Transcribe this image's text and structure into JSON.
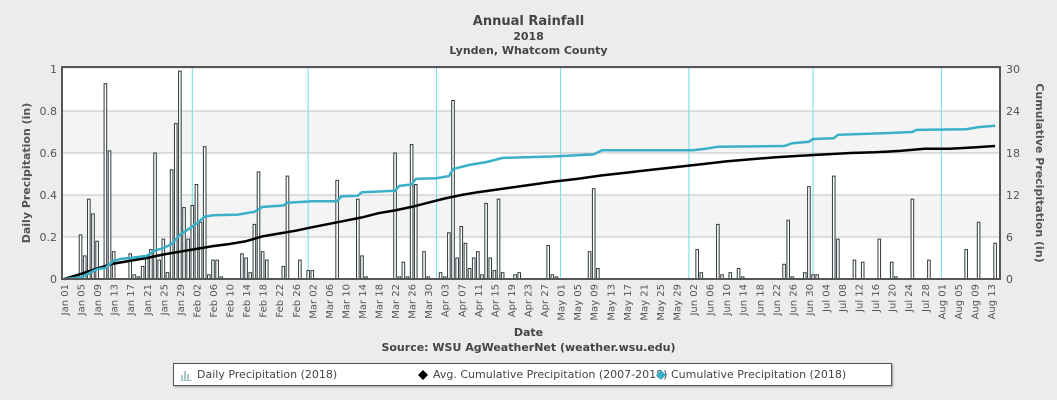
{
  "header": {
    "title": "Annual Rainfall",
    "year": "2018",
    "location": "Lynden, Whatcom County"
  },
  "source": "Source:  WSU AgWeatherNet (weather.wsu.edu)",
  "legend": {
    "items": [
      {
        "label": "Daily Precipitation (2018)",
        "icon": "bar-chart-icon",
        "color": "#a8c8cc"
      },
      {
        "label": "Avg. Cumulative Precipitation (2007-2018)",
        "icon": "diamond-icon",
        "color": "#000000"
      },
      {
        "label": "Cumulative Precipitation (2018)",
        "icon": "diamond-icon",
        "color": "#3ab0c8"
      }
    ]
  },
  "chart_data": {
    "type": "bar",
    "title": "Annual Rainfall",
    "subtitle": [
      "2018",
      "Lynden, Whatcom County"
    ],
    "xlabel": "Date",
    "ylabel": "Daily Precipitation (in)",
    "y2label": "Cumulative Precipitation (in)",
    "ylim": [
      0,
      1
    ],
    "y2lim": [
      0,
      30
    ],
    "yticks": [
      "0",
      "0.2",
      "0.4",
      "0.6",
      "0.8",
      "1"
    ],
    "y2ticks": [
      "0",
      "6",
      "12",
      "18",
      "24",
      "30"
    ],
    "xticks": [
      "Jan 01",
      "Jan 05",
      "Jan 09",
      "Jan 13",
      "Jan 17",
      "Jan 21",
      "Jan 25",
      "Jan 29",
      "Feb 02",
      "Feb 06",
      "Feb 10",
      "Feb 14",
      "Feb 18",
      "Feb 22",
      "Feb 26",
      "Mar 02",
      "Mar 06",
      "Mar 10",
      "Mar 14",
      "Mar 18",
      "Mar 22",
      "Mar 26",
      "Mar 30",
      "Apr 03",
      "Apr 07",
      "Apr 11",
      "Apr 15",
      "Apr 19",
      "Apr 23",
      "Apr 27",
      "May 01",
      "May 05",
      "May 09",
      "May 13",
      "May 17",
      "May 21",
      "May 25",
      "May 29",
      "Jun 02",
      "Jun 06",
      "Jun 10",
      "Jun 14",
      "Jun 18",
      "Jun 22",
      "Jun 26",
      "Jun 30",
      "Jul 04",
      "Jul 08",
      "Jul 12",
      "Jul 16",
      "Jul 20",
      "Jul 24",
      "Jul 28",
      "Aug 01",
      "Aug 05",
      "Aug 09",
      "Aug 13"
    ],
    "month_start_days": [
      31,
      59,
      90,
      120,
      151,
      181,
      212
    ],
    "num_days": 226,
    "grid": true,
    "legend_position": "bottom",
    "series": [
      {
        "name": "Daily Precipitation (2018)",
        "type": "bar",
        "axis": "left",
        "points": [
          [
            4,
            0.21
          ],
          [
            5,
            0.11
          ],
          [
            6,
            0.38
          ],
          [
            7,
            0.31
          ],
          [
            8,
            0.18
          ],
          [
            10,
            0.93
          ],
          [
            11,
            0.61
          ],
          [
            12,
            0.13
          ],
          [
            16,
            0.12
          ],
          [
            17,
            0.02
          ],
          [
            18,
            0.01
          ],
          [
            19,
            0.06
          ],
          [
            20,
            0.1
          ],
          [
            21,
            0.14
          ],
          [
            22,
            0.6
          ],
          [
            23,
            0.09
          ],
          [
            24,
            0.19
          ],
          [
            25,
            0.03
          ],
          [
            26,
            0.52
          ],
          [
            27,
            0.74
          ],
          [
            28,
            0.99
          ],
          [
            29,
            0.34
          ],
          [
            30,
            0.19
          ],
          [
            31,
            0.35
          ],
          [
            32,
            0.45
          ],
          [
            33,
            0.27
          ],
          [
            34,
            0.63
          ],
          [
            35,
            0.02
          ],
          [
            36,
            0.09
          ],
          [
            37,
            0.09
          ],
          [
            38,
            0.01
          ],
          [
            43,
            0.12
          ],
          [
            44,
            0.1
          ],
          [
            45,
            0.03
          ],
          [
            46,
            0.26
          ],
          [
            47,
            0.51
          ],
          [
            48,
            0.13
          ],
          [
            49,
            0.09
          ],
          [
            53,
            0.06
          ],
          [
            54,
            0.49
          ],
          [
            57,
            0.09
          ],
          [
            59,
            0.04
          ],
          [
            60,
            0.04
          ],
          [
            66,
            0.47
          ],
          [
            71,
            0.38
          ],
          [
            72,
            0.11
          ],
          [
            73,
            0.01
          ],
          [
            80,
            0.6
          ],
          [
            81,
            0.01
          ],
          [
            82,
            0.08
          ],
          [
            83,
            0.01
          ],
          [
            84,
            0.64
          ],
          [
            85,
            0.45
          ],
          [
            87,
            0.13
          ],
          [
            88,
            0.01
          ],
          [
            91,
            0.03
          ],
          [
            92,
            0.01
          ],
          [
            93,
            0.22
          ],
          [
            94,
            0.85
          ],
          [
            95,
            0.1
          ],
          [
            96,
            0.25
          ],
          [
            97,
            0.17
          ],
          [
            98,
            0.05
          ],
          [
            99,
            0.1
          ],
          [
            100,
            0.13
          ],
          [
            101,
            0.02
          ],
          [
            102,
            0.36
          ],
          [
            103,
            0.1
          ],
          [
            104,
            0.04
          ],
          [
            105,
            0.38
          ],
          [
            106,
            0.03
          ],
          [
            109,
            0.02
          ],
          [
            110,
            0.03
          ],
          [
            117,
            0.16
          ],
          [
            118,
            0.02
          ],
          [
            119,
            0.01
          ],
          [
            127,
            0.13
          ],
          [
            128,
            0.43
          ],
          [
            129,
            0.05
          ],
          [
            153,
            0.14
          ],
          [
            154,
            0.03
          ],
          [
            158,
            0.26
          ],
          [
            159,
            0.02
          ],
          [
            161,
            0.03
          ],
          [
            163,
            0.05
          ],
          [
            164,
            0.01
          ],
          [
            174,
            0.07
          ],
          [
            175,
            0.28
          ],
          [
            176,
            0.01
          ],
          [
            179,
            0.03
          ],
          [
            180,
            0.44
          ],
          [
            181,
            0.02
          ],
          [
            182,
            0.02
          ],
          [
            186,
            0.49
          ],
          [
            187,
            0.19
          ],
          [
            191,
            0.09
          ],
          [
            193,
            0.08
          ],
          [
            197,
            0.19
          ],
          [
            200,
            0.08
          ],
          [
            201,
            0.01
          ],
          [
            205,
            0.38
          ],
          [
            209,
            0.09
          ],
          [
            218,
            0.14
          ],
          [
            221,
            0.27
          ],
          [
            225,
            0.17
          ]
        ]
      },
      {
        "name": "Avg. Cumulative Precipitation (2007-2018)",
        "type": "line",
        "axis": "right",
        "color": "#000000",
        "points": [
          [
            0,
            0.0
          ],
          [
            4,
            0.7
          ],
          [
            8,
            1.5
          ],
          [
            12,
            2.2
          ],
          [
            16,
            2.6
          ],
          [
            20,
            3.0
          ],
          [
            24,
            3.5
          ],
          [
            28,
            3.9
          ],
          [
            32,
            4.3
          ],
          [
            36,
            4.7
          ],
          [
            40,
            5.0
          ],
          [
            44,
            5.4
          ],
          [
            48,
            6.1
          ],
          [
            52,
            6.5
          ],
          [
            56,
            6.9
          ],
          [
            60,
            7.4
          ],
          [
            66,
            8.1
          ],
          [
            72,
            8.8
          ],
          [
            76,
            9.4
          ],
          [
            80,
            9.8
          ],
          [
            84,
            10.3
          ],
          [
            88,
            10.9
          ],
          [
            92,
            11.5
          ],
          [
            96,
            12.0
          ],
          [
            100,
            12.4
          ],
          [
            106,
            12.9
          ],
          [
            112,
            13.4
          ],
          [
            118,
            13.9
          ],
          [
            124,
            14.3
          ],
          [
            130,
            14.8
          ],
          [
            136,
            15.2
          ],
          [
            142,
            15.6
          ],
          [
            148,
            16.0
          ],
          [
            154,
            16.4
          ],
          [
            160,
            16.8
          ],
          [
            166,
            17.1
          ],
          [
            172,
            17.4
          ],
          [
            178,
            17.6
          ],
          [
            184,
            17.8
          ],
          [
            190,
            18.0
          ],
          [
            196,
            18.1
          ],
          [
            202,
            18.3
          ],
          [
            208,
            18.6
          ],
          [
            214,
            18.6
          ],
          [
            220,
            18.8
          ],
          [
            225,
            19.0
          ]
        ]
      },
      {
        "name": "Cumulative Precipitation (2018)",
        "type": "line",
        "axis": "right",
        "color": "#3ab0c8",
        "points": [
          [
            0,
            0.0
          ],
          [
            4,
            0.2
          ],
          [
            6,
            0.8
          ],
          [
            8,
            1.4
          ],
          [
            10,
            1.6
          ],
          [
            12,
            2.6
          ],
          [
            14,
            2.9
          ],
          [
            16,
            3.0
          ],
          [
            20,
            3.3
          ],
          [
            22,
            4.1
          ],
          [
            24,
            4.4
          ],
          [
            26,
            5.0
          ],
          [
            28,
            6.3
          ],
          [
            30,
            7.1
          ],
          [
            32,
            7.9
          ],
          [
            34,
            8.9
          ],
          [
            36,
            9.1
          ],
          [
            42,
            9.2
          ],
          [
            46,
            9.6
          ],
          [
            48,
            10.3
          ],
          [
            53,
            10.5
          ],
          [
            54,
            10.9
          ],
          [
            60,
            11.1
          ],
          [
            66,
            11.1
          ],
          [
            67,
            11.8
          ],
          [
            71,
            11.9
          ],
          [
            72,
            12.4
          ],
          [
            80,
            12.6
          ],
          [
            81,
            13.3
          ],
          [
            84,
            13.5
          ],
          [
            85,
            14.3
          ],
          [
            90,
            14.4
          ],
          [
            93,
            14.7
          ],
          [
            94,
            15.7
          ],
          [
            98,
            16.3
          ],
          [
            102,
            16.7
          ],
          [
            106,
            17.3
          ],
          [
            118,
            17.5
          ],
          [
            128,
            17.8
          ],
          [
            130,
            18.4
          ],
          [
            152,
            18.4
          ],
          [
            155,
            18.6
          ],
          [
            158,
            18.9
          ],
          [
            174,
            19.0
          ],
          [
            176,
            19.4
          ],
          [
            180,
            19.6
          ],
          [
            181,
            20.0
          ],
          [
            186,
            20.1
          ],
          [
            187,
            20.6
          ],
          [
            197,
            20.8
          ],
          [
            205,
            21.0
          ],
          [
            206,
            21.3
          ],
          [
            218,
            21.4
          ],
          [
            221,
            21.7
          ],
          [
            225,
            21.9
          ]
        ]
      }
    ]
  }
}
